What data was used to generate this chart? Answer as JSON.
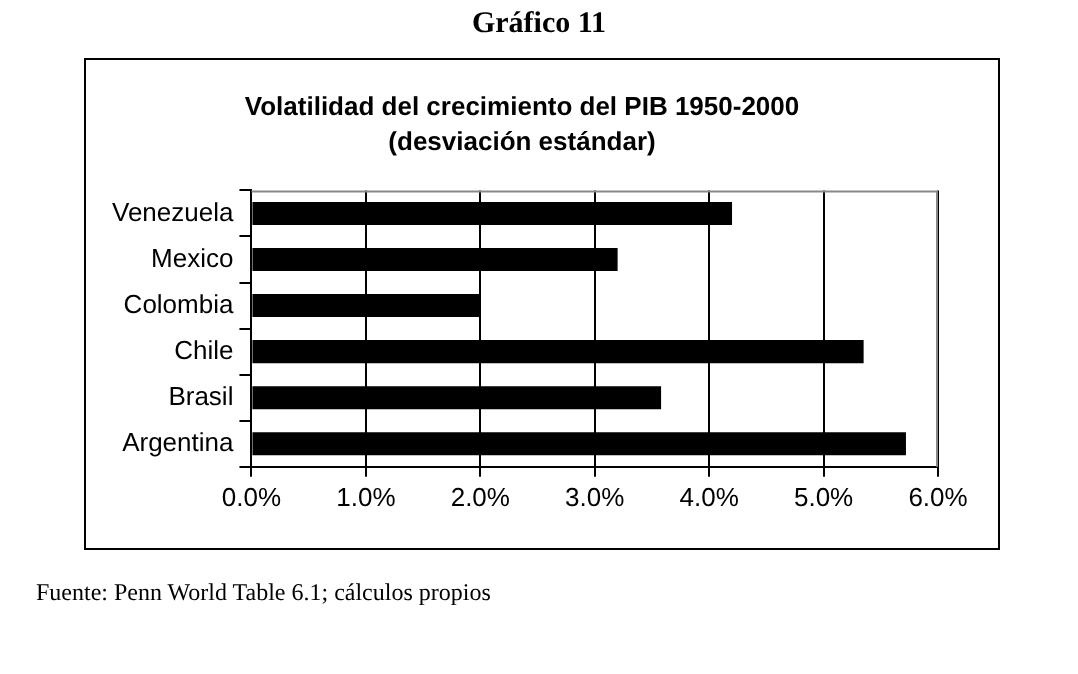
{
  "chart_data": {
    "type": "bar",
    "orientation": "horizontal",
    "title": "Volatilidad del crecimiento del PIB 1950-2000",
    "subtitle": "(desviación estándar)",
    "annotations": [
      "Gráfico 11",
      "Fuente: Penn World Table 6.1; cálculos propios"
    ],
    "categories": [
      "Venezuela",
      "Mexico",
      "Colombia",
      "Chile",
      "Brasil",
      "Argentina"
    ],
    "values": [
      4.2,
      3.2,
      2.0,
      5.35,
      3.58,
      5.72
    ],
    "color": "#000000",
    "xlim": [
      0,
      6
    ],
    "xticks": [
      {
        "value": 0,
        "label": "0.0%"
      },
      {
        "value": 1,
        "label": "1.0%"
      },
      {
        "value": 2,
        "label": "2.0%"
      },
      {
        "value": 3,
        "label": "3.0%"
      },
      {
        "value": 4,
        "label": "4.0%"
      },
      {
        "value": 5,
        "label": "5.0%"
      },
      {
        "value": 6,
        "label": "6.0%"
      }
    ],
    "grid": "x",
    "legend": false
  }
}
